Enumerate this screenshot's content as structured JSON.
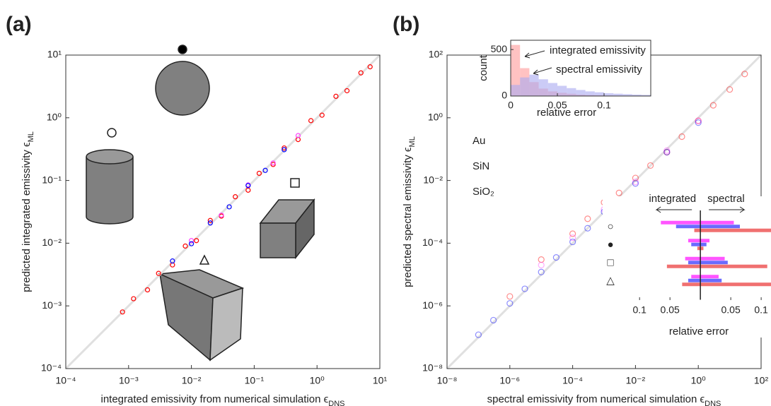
{
  "chart_data": [
    {
      "type": "scatter",
      "label": "(a)",
      "log_scale": true,
      "xlabel": "integrated emissivity from numerical simulation ϵ",
      "xlabel_sub": "DNS",
      "ylabel": "predicted integrated emissivity ϵ",
      "ylabel_sub": "ML",
      "xlim": [
        0.0001,
        10
      ],
      "ylim": [
        0.0001,
        10
      ],
      "xticks": [
        {
          "value": 0.0001,
          "label": "10⁻⁴"
        },
        {
          "value": 0.001,
          "label": "10⁻³"
        },
        {
          "value": 0.01,
          "label": "10⁻²"
        },
        {
          "value": 0.1,
          "label": "10⁻¹"
        },
        {
          "value": 1,
          "label": "10⁰"
        },
        {
          "value": 10,
          "label": "10¹"
        }
      ],
      "yticks": [
        {
          "value": 0.0001,
          "label": "10⁻⁴"
        },
        {
          "value": 0.001,
          "label": "10⁻³"
        },
        {
          "value": 0.01,
          "label": "10⁻²"
        },
        {
          "value": 0.1,
          "label": "10⁻¹"
        },
        {
          "value": 1,
          "label": "10⁰"
        },
        {
          "value": 10,
          "label": "10¹"
        }
      ],
      "series": [
        {
          "color": "#ff0000",
          "x": [
            0.0008,
            0.0012,
            0.002,
            0.003,
            0.005,
            0.008,
            0.012,
            0.02,
            0.03,
            0.05,
            0.08,
            0.12,
            0.2,
            0.3,
            0.5,
            0.8,
            1.2,
            2,
            3,
            5,
            7
          ],
          "values": [
            0.0008,
            0.0013,
            0.0018,
            0.0033,
            0.0045,
            0.009,
            0.011,
            0.023,
            0.027,
            0.055,
            0.07,
            0.13,
            0.18,
            0.33,
            0.45,
            0.9,
            1.1,
            2.2,
            2.7,
            5.2,
            6.5
          ]
        },
        {
          "color": "#ff44ff",
          "x": [
            0.01,
            0.03,
            0.08,
            0.2,
            0.5
          ],
          "values": [
            0.011,
            0.028,
            0.085,
            0.19,
            0.52
          ]
        },
        {
          "color": "#0000ff",
          "x": [
            0.005,
            0.01,
            0.02,
            0.04,
            0.08,
            0.15,
            0.3
          ],
          "values": [
            0.0052,
            0.0098,
            0.021,
            0.038,
            0.083,
            0.145,
            0.31
          ]
        }
      ]
    },
    {
      "type": "scatter",
      "label": "(b)",
      "log_scale": true,
      "xlabel": "spectral emissivity from numerical simulation ϵ",
      "xlabel_sub": "DNS",
      "ylabel": "predicted spectral emissivity ϵ",
      "ylabel_sub": "ML",
      "xlim": [
        1e-08,
        100
      ],
      "ylim": [
        1e-08,
        100
      ],
      "xticks": [
        {
          "value": 1e-08,
          "label": "10⁻⁸"
        },
        {
          "value": 1e-06,
          "label": "10⁻⁶"
        },
        {
          "value": 0.0001,
          "label": "10⁻⁴"
        },
        {
          "value": 0.01,
          "label": "10⁻²"
        },
        {
          "value": 1,
          "label": "10⁰"
        },
        {
          "value": 100,
          "label": "10²"
        }
      ],
      "yticks": [
        {
          "value": 1e-08,
          "label": "10⁻⁸"
        },
        {
          "value": 1e-06,
          "label": "10⁻⁶"
        },
        {
          "value": 0.0001,
          "label": "10⁻⁴"
        },
        {
          "value": 0.01,
          "label": "10⁻²"
        },
        {
          "value": 1,
          "label": "10⁰"
        },
        {
          "value": 100,
          "label": "10²"
        }
      ],
      "series": [
        {
          "name": "Au",
          "color": "#ff0000",
          "x": [
            1e-06,
            1e-05,
            0.0001,
            0.0003,
            0.001,
            0.003,
            0.01,
            0.03,
            0.1,
            0.3,
            1,
            3,
            10,
            30
          ],
          "values": [
            2e-06,
            3e-05,
            0.0002,
            0.0006,
            0.002,
            0.004,
            0.012,
            0.03,
            0.08,
            0.25,
            0.8,
            2.5,
            8,
            25
          ]
        },
        {
          "name": "SiN",
          "color": "#ff44ff",
          "x": [
            1e-05,
            0.0001,
            0.001,
            0.01,
            0.1,
            1
          ],
          "values": [
            2e-05,
            0.00015,
            0.0012,
            0.009,
            0.09,
            0.8
          ]
        },
        {
          "name": "SiO₂",
          "color": "#0000ff",
          "x": [
            1e-07,
            3e-07,
            1e-06,
            3e-06,
            1e-05,
            3e-05,
            0.0001,
            0.0003,
            0.001,
            0.01,
            0.1,
            1
          ],
          "values": [
            1.2e-07,
            3.5e-07,
            1.2e-06,
            3.5e-06,
            1.2e-05,
            3.5e-05,
            0.00011,
            0.0003,
            0.001,
            0.008,
            0.08,
            0.7
          ]
        }
      ]
    },
    {
      "type": "histogram",
      "xlabel": "relative error",
      "ylabel": "count",
      "bins": [
        0,
        0.01,
        0.02,
        0.03,
        0.04,
        0.05,
        0.06,
        0.07,
        0.08,
        0.09,
        0.1,
        0.11,
        0.12,
        0.13,
        0.14,
        0.15
      ],
      "xlim": [
        0,
        0.15
      ],
      "ylim": [
        0,
        600
      ],
      "xticks": [
        0,
        0.05,
        0.1
      ],
      "yticks": [
        0,
        500
      ],
      "series": [
        {
          "name": "integrated emissivity",
          "color": "#ff9a9a",
          "values": [
            550,
            300,
            150,
            80,
            50,
            35,
            25,
            15,
            10,
            8,
            5,
            4,
            3,
            2,
            1
          ]
        },
        {
          "name": "spectral emissivity",
          "color": "#a8a8f0",
          "values": [
            120,
            200,
            230,
            180,
            140,
            110,
            85,
            65,
            50,
            40,
            30,
            25,
            20,
            15,
            12
          ]
        }
      ]
    },
    {
      "type": "bar",
      "orientation": "horizontal",
      "xlabel": "relative error",
      "left_label": "integrated",
      "right_label": "spectral",
      "categories": [
        "○",
        "●",
        "□",
        "△"
      ],
      "xlim": [
        -0.12,
        0.115
      ],
      "xticks": [
        {
          "value": -0.1,
          "label": "0.1"
        },
        {
          "value": -0.05,
          "label": "0.05"
        },
        {
          "value": 0.05,
          "label": "0.05"
        },
        {
          "value": 0.1,
          "label": "0.1"
        }
      ],
      "series": [
        {
          "color": "#ff55ff",
          "integrated": [
            0.065,
            0.02,
            0.025,
            0.015
          ],
          "spectral": [
            0.055,
            0.015,
            0.04,
            0.03
          ]
        },
        {
          "color": "#6a6aff",
          "integrated": [
            0.04,
            0.015,
            0.02,
            0.02
          ],
          "spectral": [
            0.065,
            0.01,
            0.045,
            0.035
          ]
        },
        {
          "color": "#f07070",
          "integrated": [
            0.01,
            0.005,
            0.055,
            0.03
          ],
          "spectral": [
            0.13,
            0.005,
            0.11,
            0.12
          ]
        }
      ]
    }
  ]
}
